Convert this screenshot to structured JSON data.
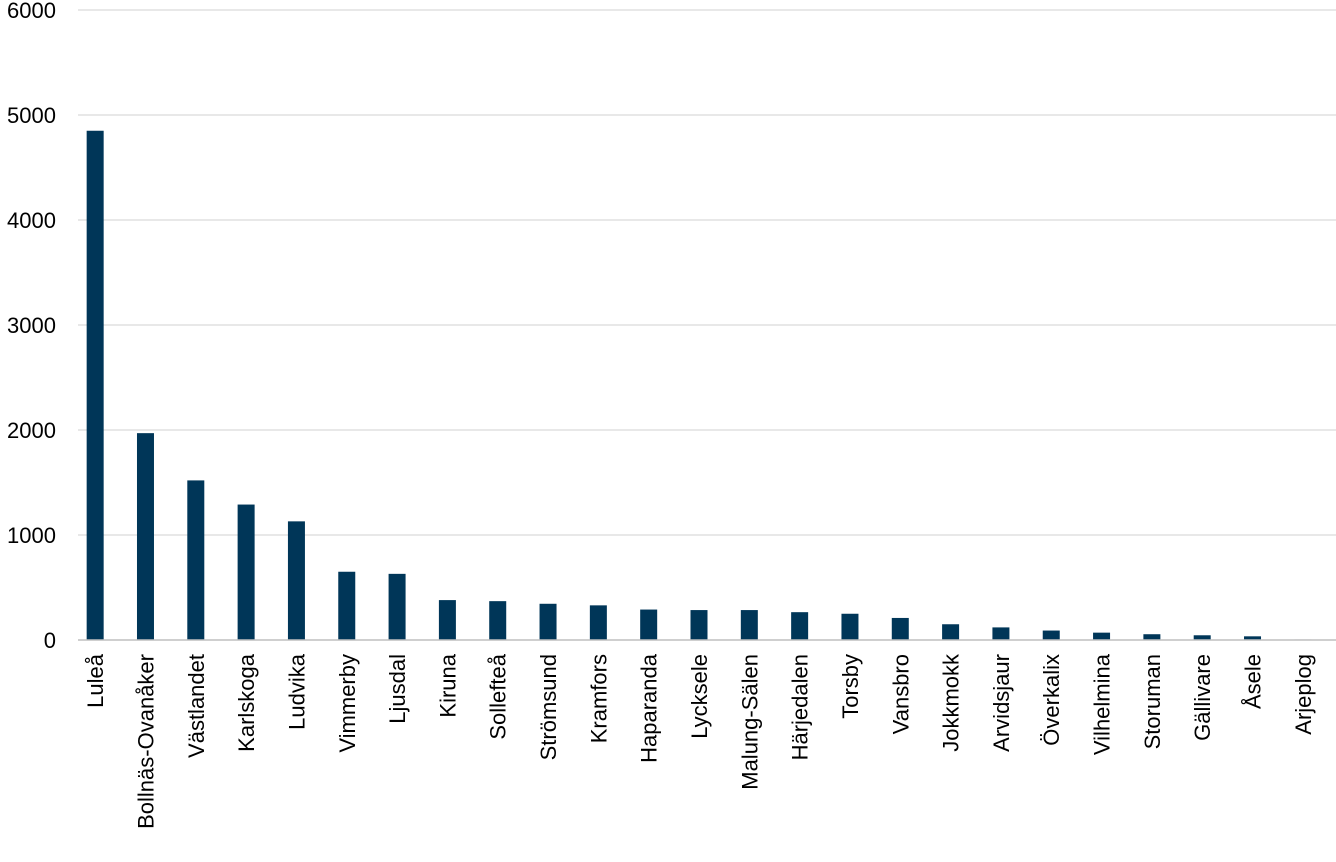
{
  "chart_data": {
    "type": "bar",
    "title": "",
    "xlabel": "",
    "ylabel": "",
    "ylim": [
      0,
      6000
    ],
    "yticks": [
      0,
      1000,
      2000,
      3000,
      4000,
      5000,
      6000
    ],
    "grid": true,
    "legend": "none",
    "bar_color": "#003658",
    "categories": [
      "Luleå",
      "Bollnäs-Ovanåker",
      "Västlandet",
      "Karlskoga",
      "Ludvika",
      "Vimmerby",
      "Ljusdal",
      "Kiruna",
      "Sollefteå",
      "Strömsund",
      "Kramfors",
      "Haparanda",
      "Lycksele",
      "Malung-Sälen",
      "Härjedalen",
      "Torsby",
      "Vansbro",
      "Jokkmokk",
      "Arvidsjaur",
      "Överkalix",
      "Vilhelmina",
      "Storuman",
      "Gällivare",
      "Åsele",
      "Arjeplog"
    ],
    "values": [
      4850,
      1970,
      1520,
      1290,
      1130,
      650,
      630,
      380,
      370,
      345,
      330,
      290,
      285,
      285,
      265,
      250,
      210,
      150,
      120,
      90,
      70,
      55,
      45,
      35,
      5
    ]
  }
}
